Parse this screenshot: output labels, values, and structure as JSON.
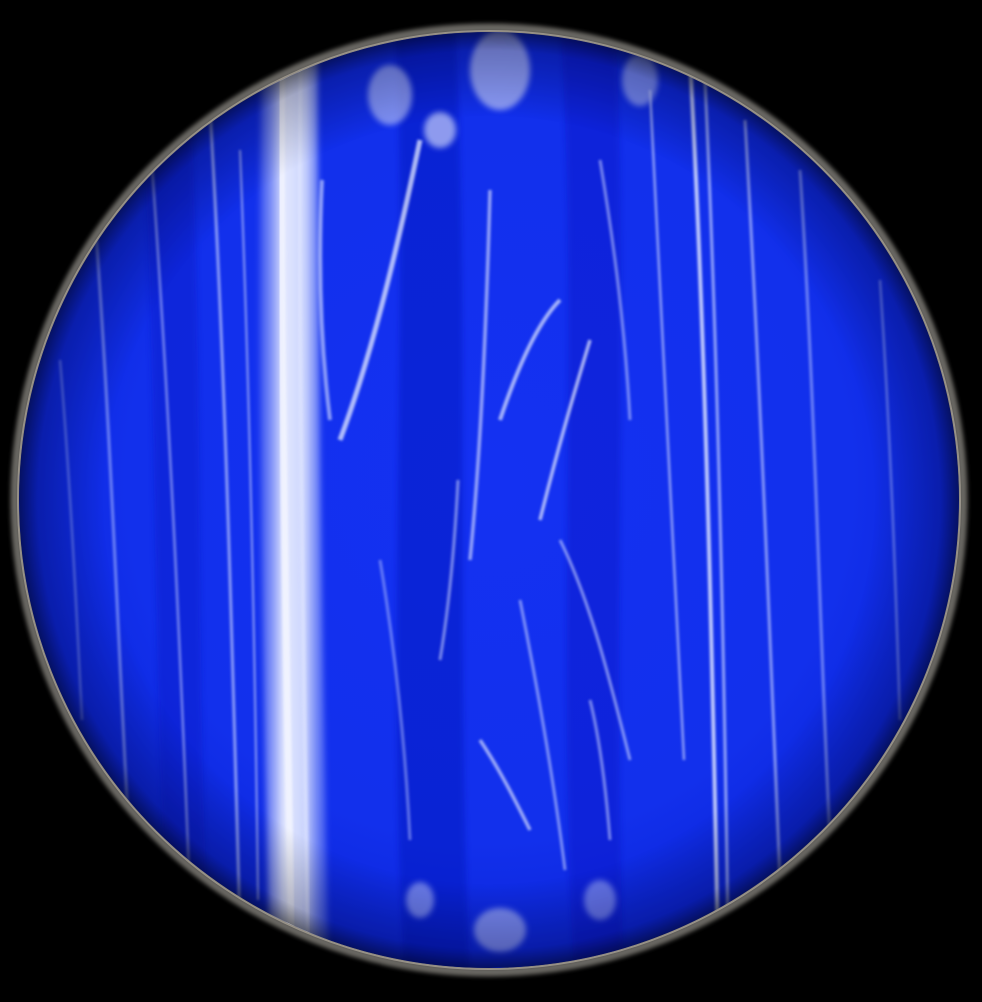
{
  "image": {
    "subject": "planet-sphere",
    "palette": {
      "background": "#000000",
      "base_blue": "#1330ef",
      "deep_blue": "#0818c8",
      "cloud_white": "#e6ecff",
      "cloud_light": "#9fb2ff",
      "rim_gray": "#8c8a86"
    }
  }
}
